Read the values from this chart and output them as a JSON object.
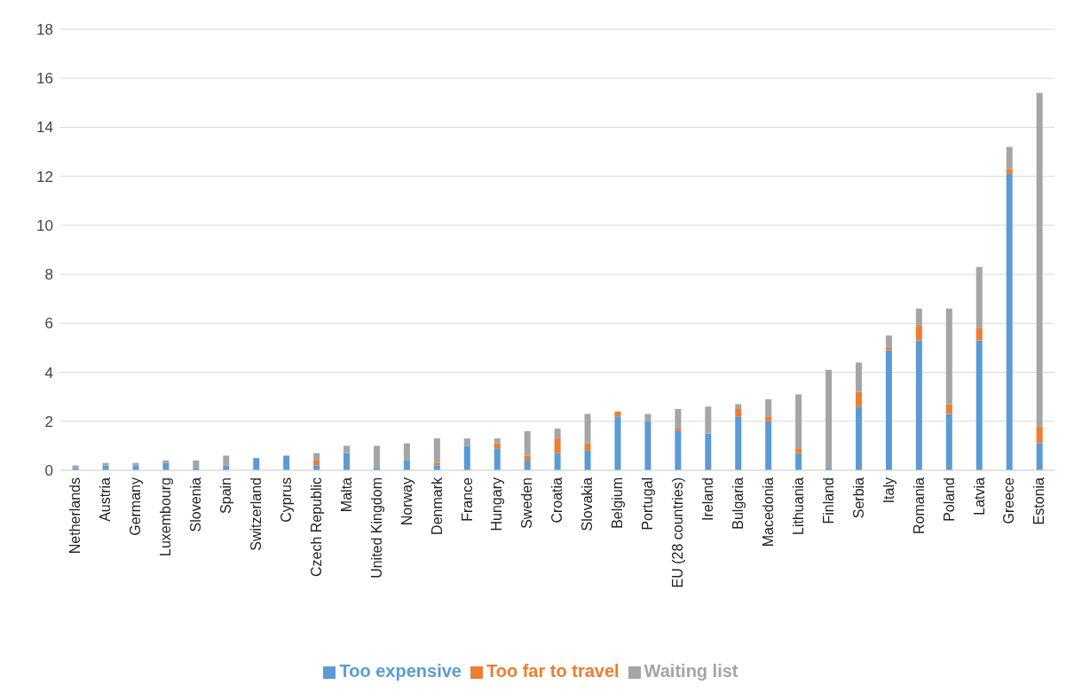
{
  "chart_data": {
    "type": "bar",
    "stacked": true,
    "categories": [
      "Netherlands",
      "Austria",
      "Germany",
      "Luxembourg",
      "Slovenia",
      "Spain",
      "Switzerland",
      "Cyprus",
      "Czech Republic",
      "Malta",
      "United Kingdom",
      "Norway",
      "Denmark",
      "France",
      "Hungary",
      "Sweden",
      "Croatia",
      "Slovakia",
      "Belgium",
      "Portugal",
      "EU (28 countries)",
      "Ireland",
      "Bulgaria",
      "Macedonia",
      "Lithuania",
      "Finland",
      "Serbia",
      "Italy",
      "Romania",
      "Poland",
      "Latvia",
      "Greece",
      "Estonia"
    ],
    "series": [
      {
        "name": "Too expensive",
        "color": "#5b9bd5",
        "values": [
          0.1,
          0.2,
          0.2,
          0.3,
          0.1,
          0.2,
          0.5,
          0.6,
          0.2,
          0.7,
          0.1,
          0.4,
          0.2,
          1.0,
          0.9,
          0.4,
          0.7,
          0.8,
          2.2,
          2.0,
          1.6,
          1.5,
          2.2,
          2.0,
          0.7,
          0.1,
          2.6,
          4.9,
          5.3,
          2.3,
          5.3,
          12.1,
          1.1
        ]
      },
      {
        "name": "Too far to travel",
        "color": "#ed7d31",
        "values": [
          0,
          0,
          0,
          0,
          0,
          0,
          0,
          0,
          0.2,
          0,
          0,
          0,
          0.1,
          0,
          0.2,
          0.2,
          0.6,
          0.3,
          0.2,
          0,
          0.1,
          0,
          0.3,
          0.2,
          0.2,
          0,
          0.6,
          0.1,
          0.6,
          0.4,
          0.5,
          0.2,
          0.7
        ]
      },
      {
        "name": "Waiting list",
        "color": "#a5a5a5",
        "values": [
          0.1,
          0.1,
          0.1,
          0.1,
          0.3,
          0.4,
          0,
          0,
          0.3,
          0.3,
          0.9,
          0.7,
          1.0,
          0.3,
          0.2,
          1.0,
          0.4,
          1.2,
          0,
          0.3,
          0.8,
          1.1,
          0.2,
          0.7,
          2.2,
          4.0,
          1.2,
          0.5,
          0.7,
          3.9,
          2.5,
          0.9,
          13.6
        ]
      }
    ],
    "ylim": [
      0,
      18
    ],
    "yticks": [
      0,
      2,
      4,
      6,
      8,
      10,
      12,
      14,
      16,
      18
    ],
    "grid": "y",
    "legend": "bottom"
  }
}
